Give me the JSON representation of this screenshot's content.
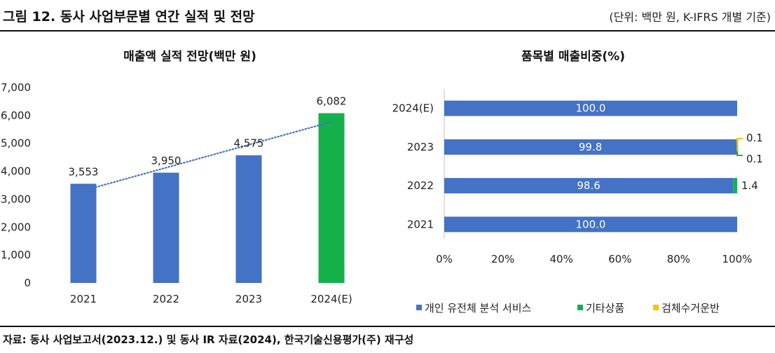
{
  "header": {
    "title": "그림 12. 동사 사업부문별 연간 실적 및 전망",
    "unit_note": "(단위: 백만 원, K-IFRS 개별 기준)"
  },
  "source": "자료: 동사 사업보고서(2023.12.) 및 동사 IR 자료(2024), 한국기술신용평가(주) 재구성",
  "chart_data": [
    {
      "type": "bar",
      "title": "매출액 실적 전망(백만 원)",
      "categories": [
        "2021",
        "2022",
        "2023",
        "2024(E)"
      ],
      "values": [
        3553,
        3950,
        4575,
        6082
      ],
      "value_labels": [
        "3,553",
        "3,950",
        "4,575",
        "6,082"
      ],
      "ylim": [
        0,
        7000
      ],
      "yticks": [
        "0",
        "1,000",
        "2,000",
        "3,000",
        "4,000",
        "5,000",
        "6,000",
        "7,000"
      ],
      "bar_colors": [
        "#4472C4",
        "#4472C4",
        "#4472C4",
        "#14B14B"
      ],
      "trendline": {
        "style": "dotted",
        "color": "#4472C4"
      },
      "grid": false
    },
    {
      "type": "bar",
      "orientation": "horizontal",
      "stacked": true,
      "title": "품목별 매출비중(%)",
      "categories": [
        "2024(E)",
        "2023",
        "2022",
        "2021"
      ],
      "series": [
        {
          "name": "개인 유전체 분석 서비스",
          "color": "#4472C4",
          "values": [
            100.0,
            99.8,
            98.6,
            100.0
          ],
          "labels": [
            "100.0",
            "99.8",
            "98.6",
            "100.0"
          ]
        },
        {
          "name": "기타상품",
          "color": "#14B14B",
          "values": [
            0,
            0.1,
            1.4,
            0
          ],
          "labels": [
            "",
            "0.1",
            "1.4",
            ""
          ]
        },
        {
          "name": "검체수거운반",
          "color": "#FFC000",
          "values": [
            0,
            0.1,
            0,
            0
          ],
          "labels": [
            "",
            "0.1",
            "",
            ""
          ]
        }
      ],
      "xlim": [
        0,
        100
      ],
      "xticks": [
        "0%",
        "20%",
        "40%",
        "60%",
        "80%",
        "100%"
      ],
      "legend": "bottom",
      "grid": false
    }
  ]
}
